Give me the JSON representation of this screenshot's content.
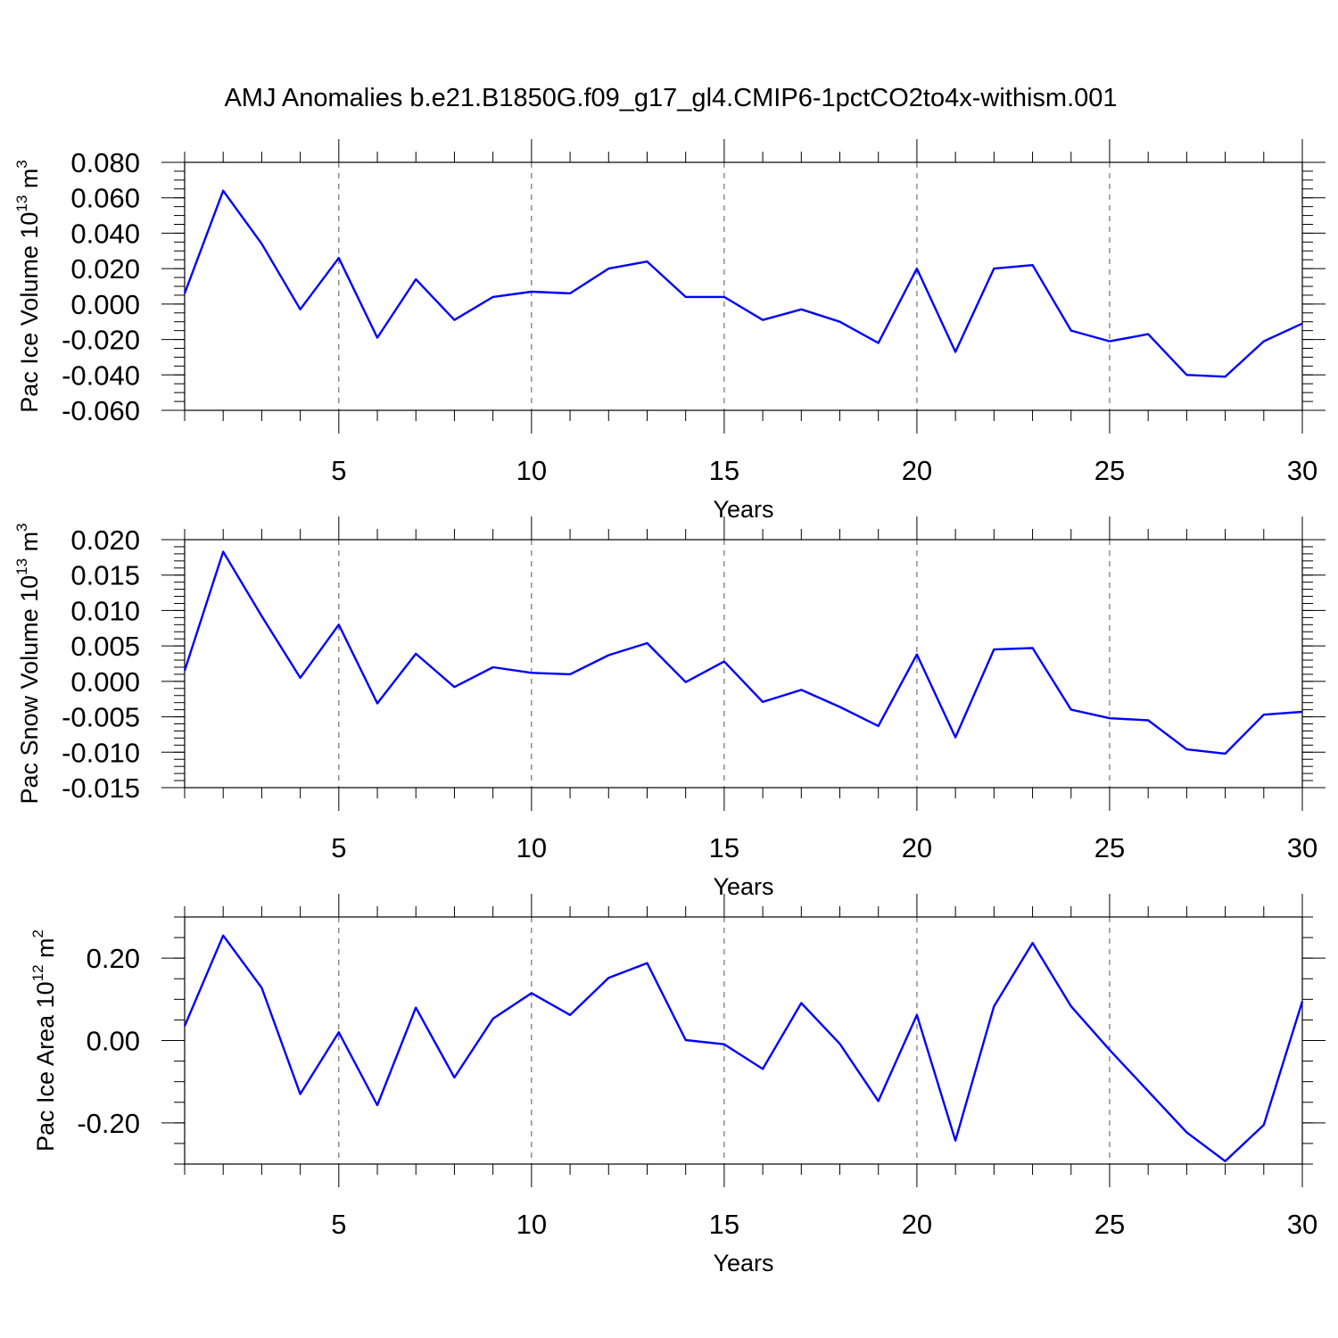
{
  "title": "AMJ Anomalies b.e21.B1850G.f09_g17_gl4.CMIP6-1pctCO2to4x-withism.001",
  "line_color": "#0000ff",
  "chart_data": [
    {
      "type": "line",
      "ylabel_main": "Pac Ice Volume 10",
      "ylabel_exp": "13",
      "ylabel_unit": "m",
      "ylabel_unit_exp": "3",
      "xlabel": "Years",
      "xlim": [
        1,
        30
      ],
      "ylim": [
        -0.06,
        0.08
      ],
      "xticks": [
        5,
        10,
        15,
        20,
        25,
        30
      ],
      "yticks": [
        -0.06,
        -0.04,
        -0.02,
        0.0,
        0.02,
        0.04,
        0.06,
        0.08
      ],
      "ytick_labels": [
        "-0.060",
        "-0.040",
        "-0.020",
        "0.000",
        "0.020",
        "0.040",
        "0.060",
        "0.080"
      ],
      "yminor_step": 0.005,
      "x": [
        1,
        2,
        3,
        4,
        5,
        6,
        7,
        8,
        9,
        10,
        11,
        12,
        13,
        14,
        15,
        16,
        17,
        18,
        19,
        20,
        21,
        22,
        23,
        24,
        25,
        26,
        27,
        28,
        29,
        30
      ],
      "values": [
        0.006,
        0.064,
        0.034,
        -0.003,
        0.026,
        -0.019,
        0.014,
        -0.009,
        0.004,
        0.007,
        0.006,
        0.02,
        0.024,
        0.004,
        0.004,
        -0.009,
        -0.003,
        -0.01,
        -0.022,
        0.02,
        -0.027,
        0.02,
        0.022,
        -0.015,
        -0.021,
        -0.017,
        -0.04,
        -0.041,
        -0.021,
        -0.011
      ]
    },
    {
      "type": "line",
      "ylabel_main": "Pac Snow Volume 10",
      "ylabel_exp": "13",
      "ylabel_unit": "m",
      "ylabel_unit_exp": "3",
      "xlabel": "Years",
      "xlim": [
        1,
        30
      ],
      "ylim": [
        -0.015,
        0.02
      ],
      "xticks": [
        5,
        10,
        15,
        20,
        25,
        30
      ],
      "yticks": [
        -0.015,
        -0.01,
        -0.005,
        0.0,
        0.005,
        0.01,
        0.015,
        0.02
      ],
      "ytick_labels": [
        "-0.015",
        "-0.010",
        "-0.005",
        "0.000",
        "0.005",
        "0.010",
        "0.015",
        "0.020"
      ],
      "yminor_step": 0.001,
      "x": [
        1,
        2,
        3,
        4,
        5,
        6,
        7,
        8,
        9,
        10,
        11,
        12,
        13,
        14,
        15,
        16,
        17,
        18,
        19,
        20,
        21,
        22,
        23,
        24,
        25,
        26,
        27,
        28,
        29,
        30
      ],
      "values": [
        0.0015,
        0.0183,
        0.0092,
        0.0005,
        0.008,
        -0.0031,
        0.0039,
        -0.0008,
        0.002,
        0.0012,
        0.001,
        0.0037,
        0.0054,
        -0.0001,
        0.0028,
        -0.0029,
        -0.0012,
        -0.0036,
        -0.0063,
        0.0038,
        -0.0079,
        0.0045,
        0.0047,
        -0.004,
        -0.0052,
        -0.0055,
        -0.0096,
        -0.0102,
        -0.0047,
        -0.0043
      ]
    },
    {
      "type": "line",
      "ylabel_main": "Pac Ice Area 10",
      "ylabel_exp": "12",
      "ylabel_unit": "m",
      "ylabel_unit_exp": "2",
      "xlabel": "Years",
      "xlim": [
        1,
        30
      ],
      "ylim": [
        -0.3,
        0.3
      ],
      "xticks": [
        5,
        10,
        15,
        20,
        25,
        30
      ],
      "yticks": [
        -0.2,
        0.0,
        0.2
      ],
      "ytick_labels": [
        "-0.20",
        "0.00",
        "0.20"
      ],
      "yminor_step": 0.05,
      "x": [
        1,
        2,
        3,
        4,
        5,
        6,
        7,
        8,
        9,
        10,
        11,
        12,
        13,
        14,
        15,
        16,
        17,
        18,
        19,
        20,
        21,
        22,
        23,
        24,
        25,
        26,
        27,
        28,
        29,
        30
      ],
      "values": [
        0.035,
        0.255,
        0.128,
        -0.13,
        0.02,
        -0.157,
        0.08,
        -0.09,
        0.053,
        0.115,
        0.062,
        0.152,
        0.188,
        0.001,
        -0.009,
        -0.069,
        0.091,
        -0.008,
        -0.147,
        0.062,
        -0.243,
        0.083,
        0.237,
        0.083,
        -0.023,
        -0.123,
        -0.223,
        -0.293,
        -0.205,
        0.095
      ]
    }
  ]
}
